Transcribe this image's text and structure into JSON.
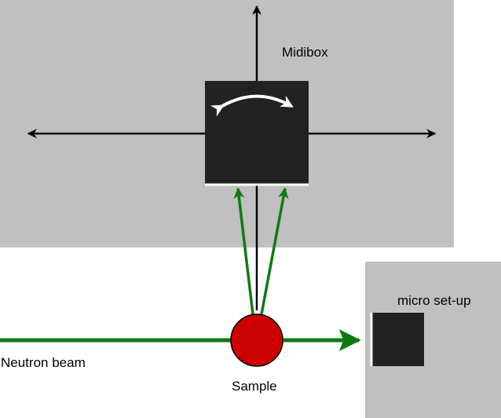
{
  "labels": {
    "midibox": "Midibox",
    "micro_setup": "micro set-up",
    "neutron_beam": "Neutron beam",
    "sample": "Sample"
  },
  "colors": {
    "panel_gray": "#c0c0c0",
    "box_dark": "#222222",
    "beam_green": "#107a10",
    "sample_red": "#cc0000",
    "axis_black": "#000000",
    "rotation_white": "#ffffff"
  }
}
